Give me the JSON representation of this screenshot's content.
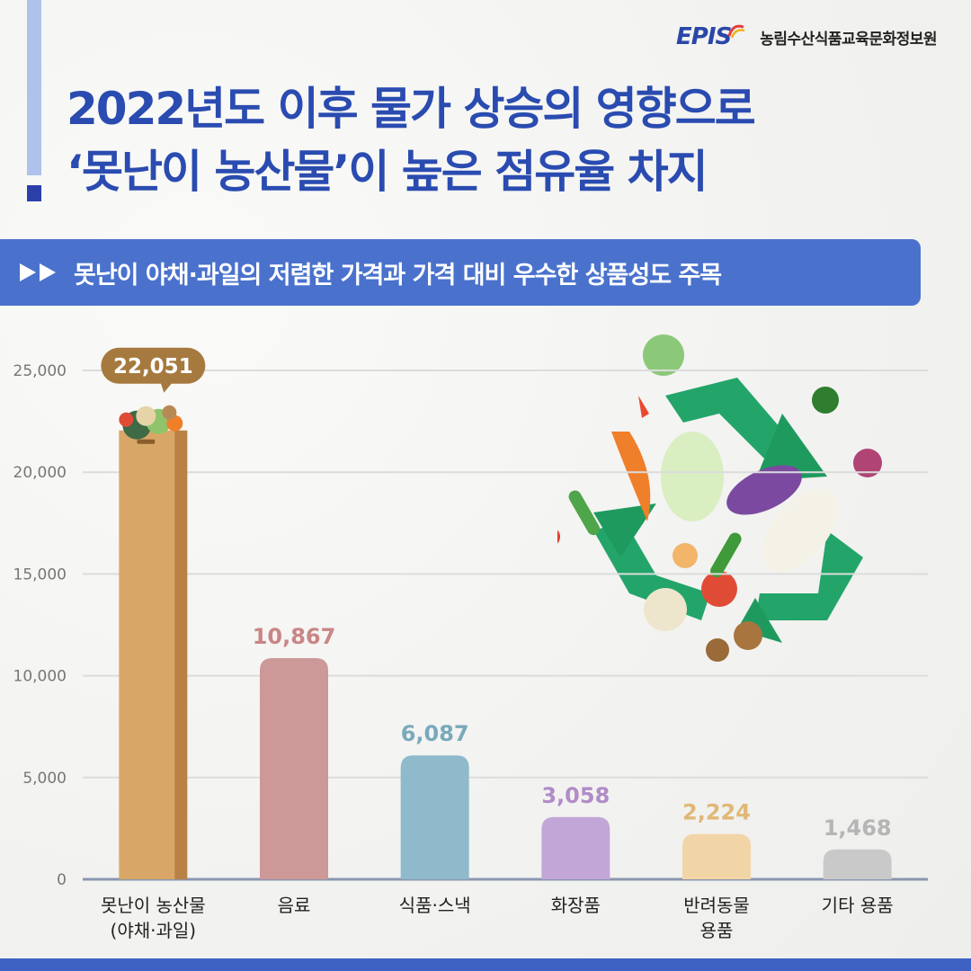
{
  "header": {
    "logo_text": "EPIS",
    "org_name": "농림수산식품교육문화정보원",
    "title_line1": "2022년도 이후 물가 상승의 영향으로",
    "title_line2": "‘못난이 농산물’이 높은 점유율 차지"
  },
  "banner": {
    "text": "못난이 야채·과일의 저렴한 가격과 가격 대비 우수한 상품성도 주목"
  },
  "colors": {
    "title": "#2a4bb0",
    "banner": "#4a72cd",
    "accent_dark": "#2b3fa8"
  },
  "chart_data": {
    "type": "bar",
    "categories": [
      "못난이 농산물\n(야채·과일)",
      "음료",
      "식품·스낵",
      "화장품",
      "반려동물\n용품",
      "기타 용품"
    ],
    "values": [
      22051,
      10867,
      6087,
      3058,
      2224,
      1468
    ],
    "value_labels": [
      "22,051",
      "10,867",
      "6,087",
      "3,058",
      "2,224",
      "1,468"
    ],
    "bar_colors": [
      "#d8a767",
      "#cc9898",
      "#8ebacb",
      "#c3a6d8",
      "#f2d5a6",
      "#c9c9c9"
    ],
    "label_colors": [
      "#ffffff",
      "#c98686",
      "#78aabb",
      "#b08cc8",
      "#e0b876",
      "#b5b5b5"
    ],
    "yticks": [
      "0",
      "5,000",
      "10,000",
      "15,000",
      "20,000",
      "25,000"
    ],
    "ylim": [
      0,
      25000
    ],
    "grid": true
  }
}
